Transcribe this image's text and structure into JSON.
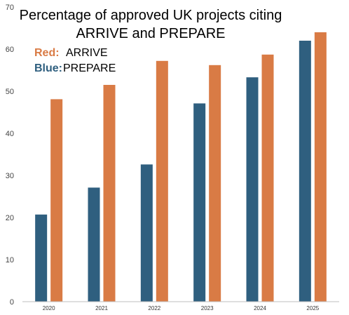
{
  "chart_data": {
    "type": "bar",
    "title_lines": [
      "Percentage of approved UK projects citing",
      "ARRIVE and PREPARE"
    ],
    "legend": [
      {
        "key": "Red:",
        "label": "ARRIVE",
        "color": "#D97B45"
      },
      {
        "key": "Blue:",
        "label": "PREPARE",
        "color": "#2F5F7F"
      }
    ],
    "categories": [
      "2020",
      "2021",
      "2022",
      "2023",
      "2024",
      "2025"
    ],
    "series": [
      {
        "name": "PREPARE",
        "color": "#2F5F7F",
        "values": [
          20.7,
          27.1,
          32.6,
          47.1,
          53.3,
          62.0
        ]
      },
      {
        "name": "ARRIVE",
        "color": "#D97B45",
        "values": [
          48.1,
          51.5,
          57.2,
          56.2,
          58.7,
          64.0
        ]
      }
    ],
    "yticks": [
      0,
      10,
      20,
      30,
      40,
      50,
      60,
      70
    ],
    "ylim": [
      0,
      70
    ],
    "xlabel": "",
    "ylabel": "",
    "grid": false,
    "legend_placement": "top-left"
  }
}
